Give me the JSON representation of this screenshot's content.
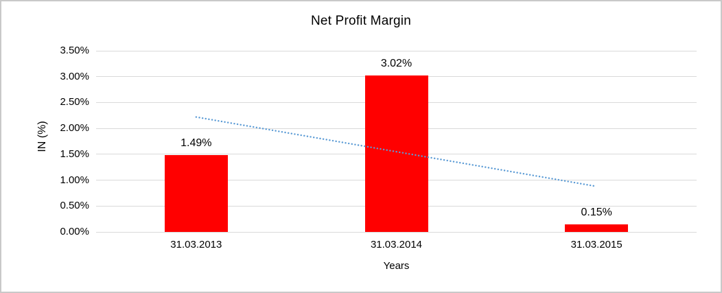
{
  "chart_data": {
    "type": "bar",
    "title": "Net Profit Margin",
    "xlabel": "Years",
    "ylabel": "IN (%)",
    "categories": [
      "31.03.2013",
      "31.03.2014",
      "31.03.2015"
    ],
    "values": [
      1.49,
      3.02,
      0.15
    ],
    "data_labels": [
      "1.49%",
      "3.02%",
      "0.15%"
    ],
    "y_tick_labels": [
      "0.00%",
      "0.50%",
      "1.00%",
      "1.50%",
      "2.00%",
      "2.50%",
      "3.00%",
      "3.50%"
    ],
    "y_tick_values": [
      0,
      0.5,
      1,
      1.5,
      2,
      2.5,
      3,
      3.5
    ],
    "ylim": [
      0,
      3.5
    ],
    "grid": true,
    "legend": false,
    "trendline": {
      "style": "dotted",
      "start_category": "31.03.2013",
      "end_category": "31.03.2015",
      "start_value": 2.22,
      "end_value": 0.88
    }
  },
  "colors": {
    "bar": "#ff0000",
    "trendline": "#5b9bd5",
    "gridline": "#d9d9d9",
    "text": "#000000",
    "border": "#c9c9c9"
  }
}
